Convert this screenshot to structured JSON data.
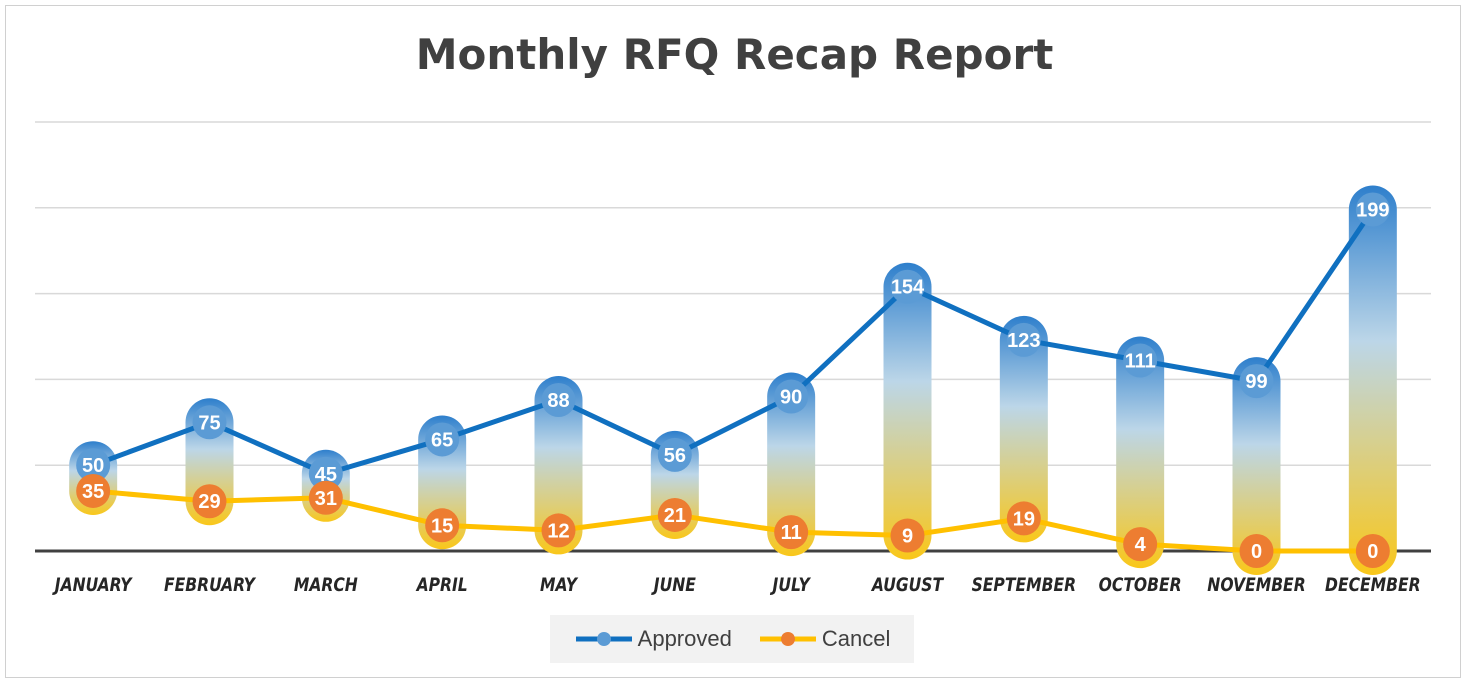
{
  "chart_data": {
    "type": "line",
    "title": "Monthly RFQ Recap Report",
    "xlabel": "",
    "ylabel": "",
    "ylim": [
      0,
      250
    ],
    "grid": true,
    "y_tick_labels_shown": false,
    "legend_position": "bottom",
    "categories": [
      "JANUARY",
      "FEBRUARY",
      "MARCH",
      "APRIL",
      "MAY",
      "JUNE",
      "JULY",
      "AUGUST",
      "SEPTEMBER",
      "OCTOBER",
      "NOVEMBER",
      "DECEMBER"
    ],
    "series": [
      {
        "name": "Approved",
        "color": "#1070c0",
        "marker_color": "#5b9bd5",
        "values": [
          50,
          75,
          45,
          65,
          88,
          56,
          90,
          154,
          123,
          111,
          99,
          199
        ]
      },
      {
        "name": "Cancel",
        "color": "#ffc000",
        "marker_color": "#ed7d31",
        "values": [
          35,
          29,
          31,
          15,
          12,
          21,
          11,
          9,
          19,
          4,
          0,
          0
        ]
      }
    ]
  }
}
